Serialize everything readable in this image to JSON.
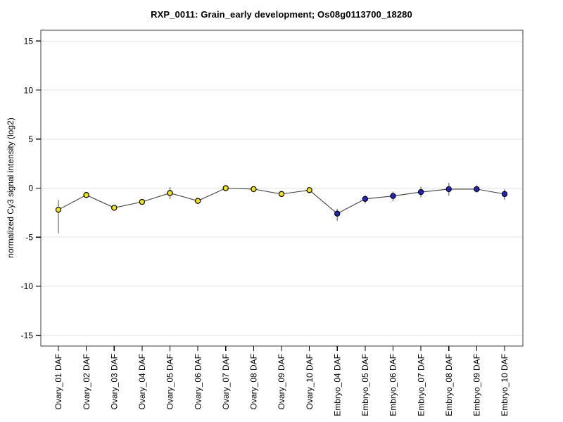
{
  "chart_data": {
    "type": "line",
    "title": "RXP_0011: Grain_early development; Os08g0113700_18280",
    "ylabel": "normalized Cy3 signal intensity (log2)",
    "xlabel": "",
    "ylim": [
      -16.1,
      16.1
    ],
    "yticks": [
      15,
      10,
      5,
      0,
      -5,
      -10,
      -15
    ],
    "grid": true,
    "legend": "none",
    "categories": [
      "Ovary_01 DAF",
      "Ovary_02 DAF",
      "Ovary_03 DAF",
      "Ovary_04 DAF",
      "Ovary_05 DAF",
      "Ovary_06 DAF",
      "Ovary_07 DAF",
      "Ovary_08 DAF",
      "Ovary_09 DAF",
      "Ovary_10 DAF",
      "Embryo_04 DAF",
      "Embryo_05 DAF",
      "Embryo_06 DAF",
      "Embryo_07 DAF",
      "Embryo_08 DAF",
      "Embryo_09 DAF",
      "Embryo_10 DAF"
    ],
    "series": [
      {
        "name": "normalized Cy3 signal intensity (log2)",
        "values": [
          -2.2,
          -0.7,
          -2.0,
          -1.4,
          -0.5,
          -1.3,
          0.0,
          -0.1,
          -0.6,
          -0.2,
          -2.6,
          -1.1,
          -0.8,
          -0.4,
          -0.1,
          -0.1,
          -0.6
        ],
        "error_low": [
          -4.6,
          -0.95,
          -2.2,
          -1.6,
          -1.1,
          -1.5,
          -0.25,
          -0.35,
          -0.8,
          -0.5,
          -3.35,
          -1.55,
          -1.35,
          -0.95,
          -0.75,
          -0.45,
          -1.2
        ],
        "error_high": [
          -1.2,
          -0.5,
          -1.8,
          -1.2,
          0.1,
          -1.1,
          0.2,
          0.1,
          -0.4,
          0.05,
          -2.1,
          -0.75,
          -0.35,
          0.15,
          0.55,
          0.3,
          -0.1
        ],
        "point_groups": [
          "ovary",
          "ovary",
          "ovary",
          "ovary",
          "ovary",
          "ovary",
          "ovary",
          "ovary",
          "ovary",
          "ovary",
          "embryo",
          "embryo",
          "embryo",
          "embryo",
          "embryo",
          "embryo",
          "embryo"
        ]
      }
    ],
    "group_colors": {
      "ovary": "#F5E500",
      "embryo": "#2323CC"
    },
    "colors": {
      "line": "#404040",
      "error_bar": "#8C8C8C",
      "grid": "#E3E3E3",
      "frame": "#3C3C3C",
      "tick": "#000000",
      "marker_outline": "#000000",
      "text": "#000000",
      "background": "#FFFFFF"
    }
  }
}
